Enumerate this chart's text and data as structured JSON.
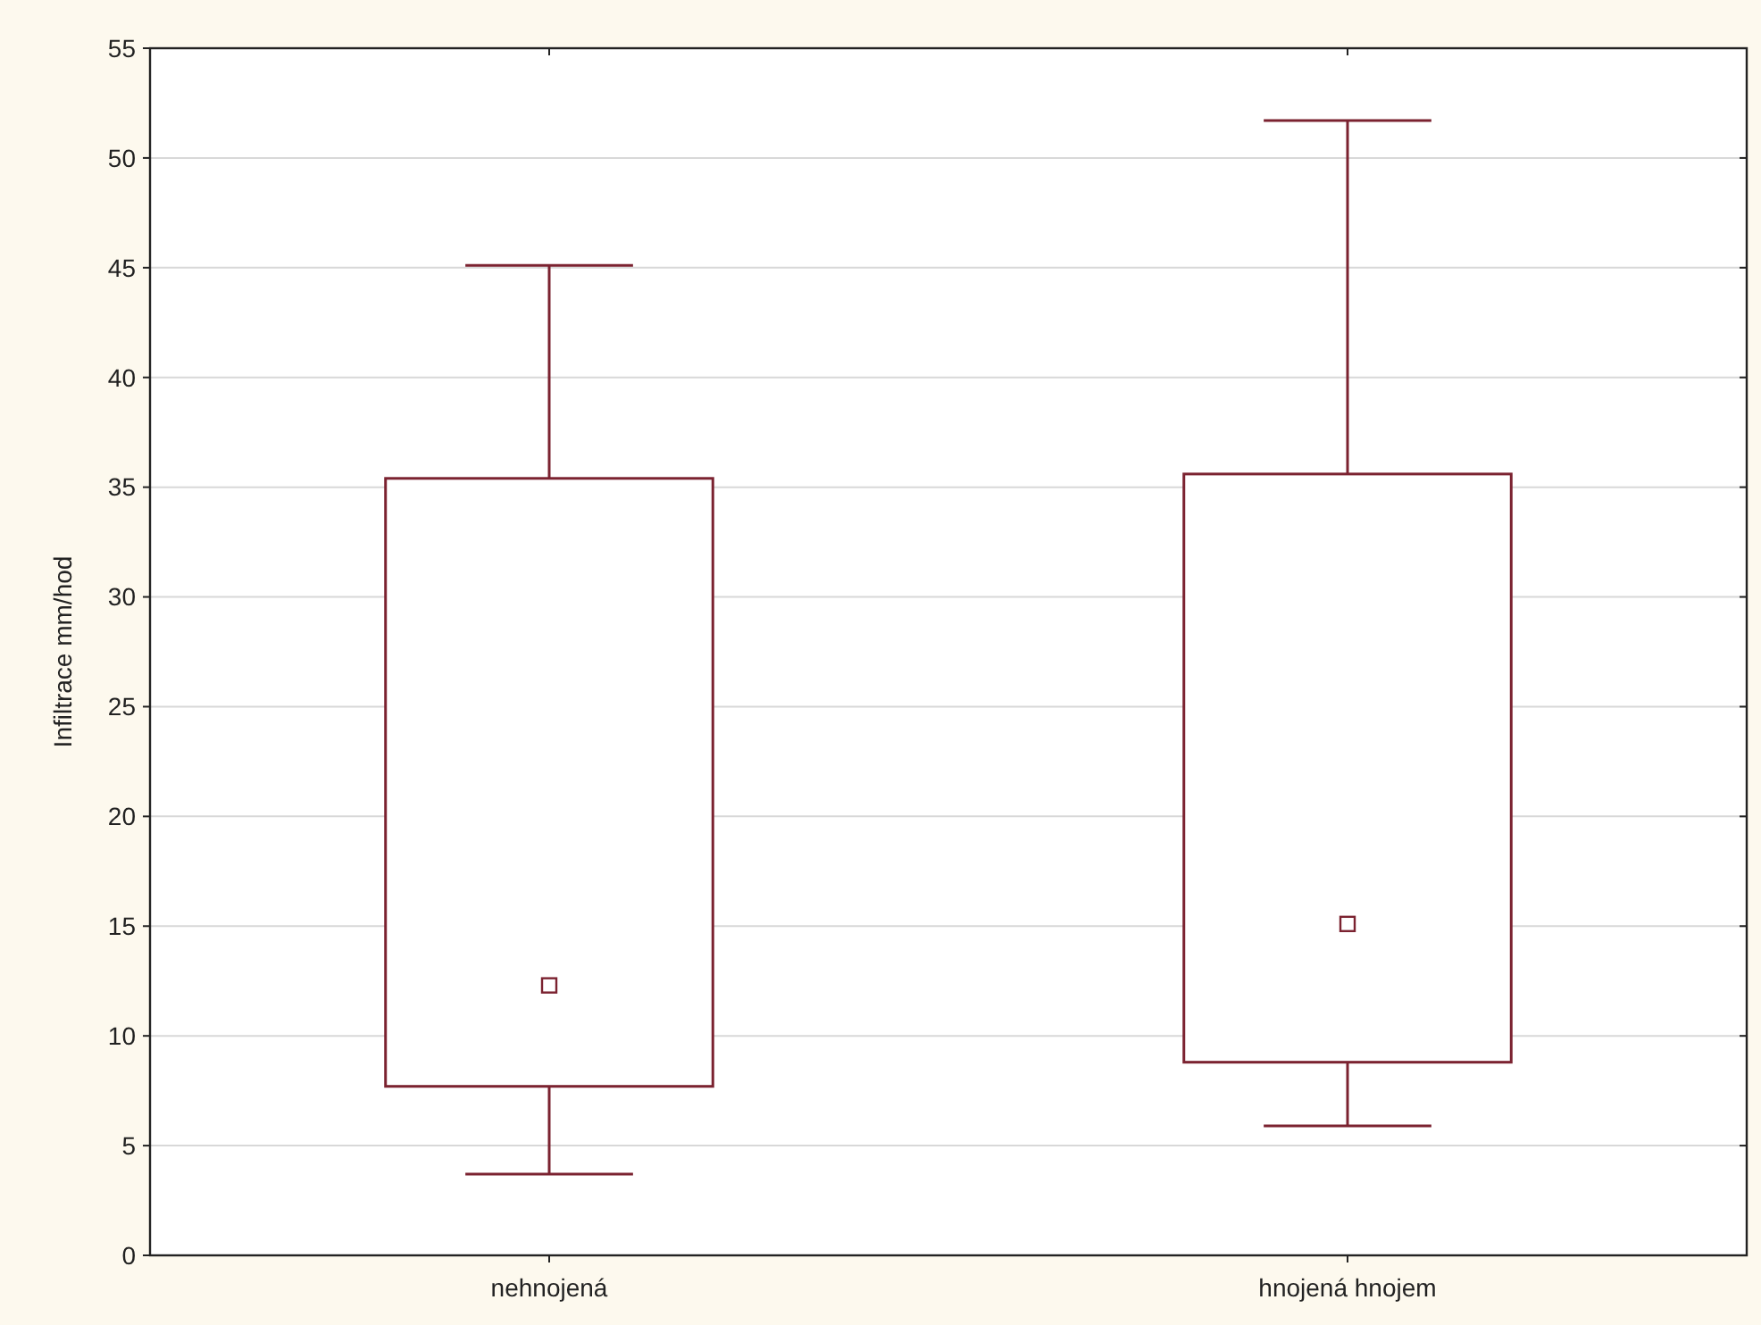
{
  "chart_data": {
    "type": "box",
    "ylabel": "Infiltrace mm/hod",
    "categories": [
      "nehnojená",
      "hnojená hnojem"
    ],
    "boxes": [
      {
        "low": 3.7,
        "q1": 7.7,
        "median": 12.3,
        "q3": 35.4,
        "high": 45.1
      },
      {
        "low": 5.9,
        "q1": 8.8,
        "median": 15.1,
        "q3": 35.6,
        "high": 51.7
      }
    ],
    "color": "#7b2230",
    "ylim": [
      0,
      55
    ],
    "yticks": [
      0,
      5,
      10,
      15,
      20,
      25,
      30,
      35,
      40,
      45,
      50,
      55
    ],
    "grid": "y",
    "marker": "square"
  }
}
